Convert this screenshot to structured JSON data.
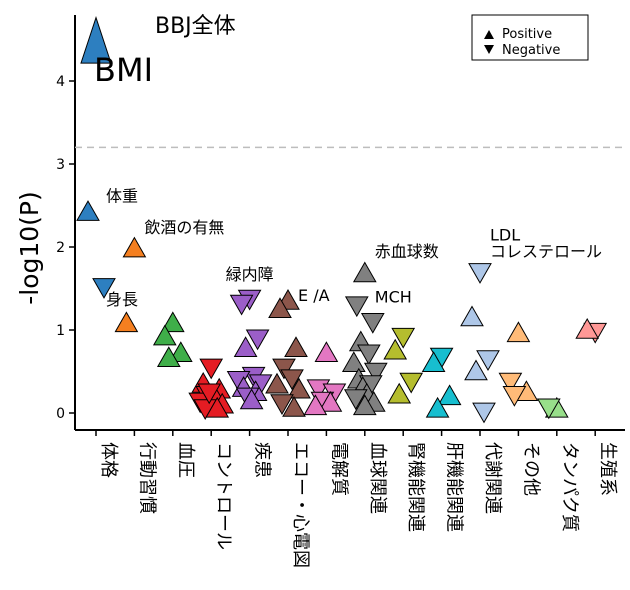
{
  "chart_data": {
    "type": "scatter",
    "title": "BBJ全体",
    "xlabel": "",
    "ylabel": "-log10(P)",
    "ylim": [
      -0.2,
      4.7
    ],
    "yticks": [
      0,
      1,
      2,
      3,
      4
    ],
    "threshold": 3.2,
    "grid": false,
    "legend_position": "top-right",
    "legend": [
      {
        "shape": "up",
        "label": "Positive"
      },
      {
        "shape": "down",
        "label": "Negative"
      }
    ],
    "categories": [
      "体格",
      "行動習慣",
      "血圧",
      "コントロール",
      "疾患",
      "エコー・心電図",
      "電解質",
      "血球関連",
      "腎機能関連",
      "肝機能関連",
      "代謝関連",
      "その他",
      "タンパク質",
      "生殖系"
    ],
    "colors": [
      "#2d7fc0",
      "#f47f20",
      "#3fae49",
      "#e51c23",
      "#9b5ec8",
      "#8c564b",
      "#e377c2",
      "#808080",
      "#b5bd2e",
      "#17becf",
      "#aec7e8",
      "#ffbb78",
      "#98df8a",
      "#ff9896"
    ],
    "points": [
      {
        "c": 0,
        "y": 4.45,
        "dir": "up",
        "big": true
      },
      {
        "c": 0,
        "y": 2.42,
        "dir": "up"
      },
      {
        "c": 0,
        "y": 1.52,
        "dir": "down"
      },
      {
        "c": 1,
        "y": 1.98,
        "dir": "up"
      },
      {
        "c": 1,
        "y": 1.08,
        "dir": "up"
      },
      {
        "c": 2,
        "y": 1.08,
        "dir": "up"
      },
      {
        "c": 2,
        "y": 0.92,
        "dir": "up"
      },
      {
        "c": 2,
        "y": 0.72,
        "dir": "up"
      },
      {
        "c": 2,
        "y": 0.66,
        "dir": "up"
      },
      {
        "c": 3,
        "y": 0.55,
        "dir": "down"
      },
      {
        "c": 3,
        "y": 0.35,
        "dir": "up"
      },
      {
        "c": 3,
        "y": 0.28,
        "dir": "up"
      },
      {
        "c": 3,
        "y": 0.22,
        "dir": "down"
      },
      {
        "c": 3,
        "y": 0.18,
        "dir": "up"
      },
      {
        "c": 3,
        "y": 0.14,
        "dir": "down"
      },
      {
        "c": 3,
        "y": 0.1,
        "dir": "up"
      },
      {
        "c": 3,
        "y": 0.06,
        "dir": "down"
      },
      {
        "c": 3,
        "y": 0.05,
        "dir": "up"
      },
      {
        "c": 3,
        "y": 0.25,
        "dir": "down"
      },
      {
        "c": 4,
        "y": 1.38,
        "dir": "down"
      },
      {
        "c": 4,
        "y": 1.32,
        "dir": "down"
      },
      {
        "c": 4,
        "y": 0.9,
        "dir": "down"
      },
      {
        "c": 4,
        "y": 0.78,
        "dir": "up"
      },
      {
        "c": 4,
        "y": 0.45,
        "dir": "down"
      },
      {
        "c": 4,
        "y": 0.4,
        "dir": "down"
      },
      {
        "c": 4,
        "y": 0.36,
        "dir": "down"
      },
      {
        "c": 4,
        "y": 0.3,
        "dir": "up"
      },
      {
        "c": 4,
        "y": 0.25,
        "dir": "up"
      },
      {
        "c": 4,
        "y": 0.2,
        "dir": "down"
      },
      {
        "c": 4,
        "y": 0.15,
        "dir": "up"
      },
      {
        "c": 5,
        "y": 1.35,
        "dir": "up"
      },
      {
        "c": 5,
        "y": 1.25,
        "dir": "up"
      },
      {
        "c": 5,
        "y": 0.78,
        "dir": "up"
      },
      {
        "c": 5,
        "y": 0.55,
        "dir": "down"
      },
      {
        "c": 5,
        "y": 0.42,
        "dir": "down"
      },
      {
        "c": 5,
        "y": 0.34,
        "dir": "up"
      },
      {
        "c": 5,
        "y": 0.28,
        "dir": "up"
      },
      {
        "c": 5,
        "y": 0.12,
        "dir": "down"
      },
      {
        "c": 5,
        "y": 0.06,
        "dir": "up"
      },
      {
        "c": 6,
        "y": 0.72,
        "dir": "up"
      },
      {
        "c": 6,
        "y": 0.3,
        "dir": "down"
      },
      {
        "c": 6,
        "y": 0.25,
        "dir": "down"
      },
      {
        "c": 6,
        "y": 0.15,
        "dir": "down"
      },
      {
        "c": 6,
        "y": 0.12,
        "dir": "up"
      },
      {
        "c": 6,
        "y": 0.08,
        "dir": "up"
      },
      {
        "c": 7,
        "y": 1.68,
        "dir": "up"
      },
      {
        "c": 7,
        "y": 1.3,
        "dir": "down"
      },
      {
        "c": 7,
        "y": 1.1,
        "dir": "down"
      },
      {
        "c": 7,
        "y": 0.85,
        "dir": "up"
      },
      {
        "c": 7,
        "y": 0.72,
        "dir": "down"
      },
      {
        "c": 7,
        "y": 0.6,
        "dir": "up"
      },
      {
        "c": 7,
        "y": 0.5,
        "dir": "down"
      },
      {
        "c": 7,
        "y": 0.4,
        "dir": "up"
      },
      {
        "c": 7,
        "y": 0.35,
        "dir": "down"
      },
      {
        "c": 7,
        "y": 0.3,
        "dir": "up"
      },
      {
        "c": 7,
        "y": 0.22,
        "dir": "up"
      },
      {
        "c": 7,
        "y": 0.18,
        "dir": "down"
      },
      {
        "c": 7,
        "y": 0.12,
        "dir": "up"
      },
      {
        "c": 7,
        "y": 0.08,
        "dir": "up"
      },
      {
        "c": 8,
        "y": 0.92,
        "dir": "down"
      },
      {
        "c": 8,
        "y": 0.75,
        "dir": "up"
      },
      {
        "c": 8,
        "y": 0.38,
        "dir": "down"
      },
      {
        "c": 8,
        "y": 0.22,
        "dir": "up"
      },
      {
        "c": 9,
        "y": 0.68,
        "dir": "down"
      },
      {
        "c": 9,
        "y": 0.6,
        "dir": "up"
      },
      {
        "c": 9,
        "y": 0.2,
        "dir": "up"
      },
      {
        "c": 9,
        "y": 0.05,
        "dir": "up"
      },
      {
        "c": 10,
        "y": 1.7,
        "dir": "down"
      },
      {
        "c": 10,
        "y": 1.15,
        "dir": "up"
      },
      {
        "c": 10,
        "y": 0.65,
        "dir": "down"
      },
      {
        "c": 10,
        "y": 0.5,
        "dir": "up"
      },
      {
        "c": 10,
        "y": 0.02,
        "dir": "down"
      },
      {
        "c": 11,
        "y": 0.96,
        "dir": "up"
      },
      {
        "c": 11,
        "y": 0.38,
        "dir": "down"
      },
      {
        "c": 11,
        "y": 0.25,
        "dir": "up"
      },
      {
        "c": 11,
        "y": 0.22,
        "dir": "down"
      },
      {
        "c": 12,
        "y": 0.05,
        "dir": "up"
      },
      {
        "c": 12,
        "y": 0.07,
        "dir": "down"
      },
      {
        "c": 13,
        "y": 0.98,
        "dir": "down"
      },
      {
        "c": 13,
        "y": 1.0,
        "dir": "up"
      }
    ],
    "annotations": [
      {
        "text": "BMI",
        "c": 0,
        "y": 4.0,
        "size": "large",
        "anchor": "start"
      },
      {
        "text": "体重",
        "c": 0,
        "y": 2.55,
        "anchor": "start"
      },
      {
        "text": "飲酒の有無",
        "c": 1,
        "y": 2.17,
        "anchor": "start"
      },
      {
        "text": "身長",
        "c": 0,
        "y": 1.3,
        "anchor": "start"
      },
      {
        "text": "緑内障",
        "c": 4,
        "y": 1.6,
        "anchor": "middle"
      },
      {
        "text": "E /A",
        "c": 5,
        "y": 1.35,
        "anchor": "start"
      },
      {
        "text": "MCH",
        "c": 7,
        "y": 1.33,
        "anchor": "start"
      },
      {
        "text": "赤血球数",
        "c": 7,
        "y": 1.88,
        "anchor": "start"
      },
      {
        "text": "LDL",
        "c": 10,
        "y": 2.08,
        "anchor": "start"
      },
      {
        "text": "コレステロール",
        "c": 10,
        "y": 1.88,
        "anchor": "start"
      }
    ]
  }
}
